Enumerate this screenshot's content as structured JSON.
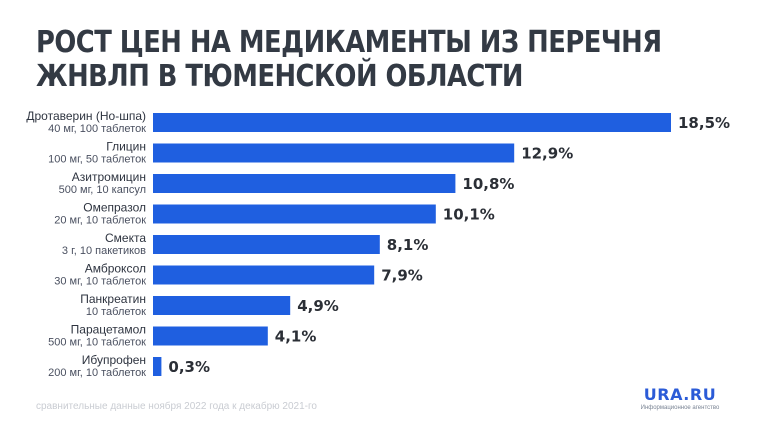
{
  "title_line1": "РОСТ ЦЕН НА МЕДИКАМЕНТЫ ИЗ ПЕРЕЧНЯ",
  "title_line2": "ЖНВЛП В ТЮМЕНСКОЙ ОБЛАСТИ",
  "footnote": "сравнительные данные ноября 2022 года к декабрю 2021-го",
  "brand": {
    "name": "URA.RU",
    "tagline": "Информационное агентство"
  },
  "colors": {
    "bar": "#1f5fe0",
    "title": "#333a44"
  },
  "chart_data": {
    "type": "bar",
    "orientation": "horizontal",
    "categories": [
      {
        "name": "Дротаверин (Но-шпа)",
        "sub": "40 мг, 100 таблеток",
        "value": 18.5,
        "label": "18,5%"
      },
      {
        "name": "Глицин",
        "sub": "100 мг, 50 таблеток",
        "value": 12.9,
        "label": "12,9%"
      },
      {
        "name": "Азитромицин",
        "sub": "500 мг, 10 капсул",
        "value": 10.8,
        "label": "10,8%"
      },
      {
        "name": "Омепразол",
        "sub": "20 мг, 10 таблеток",
        "value": 10.1,
        "label": "10,1%"
      },
      {
        "name": "Смекта",
        "sub": "3 г, 10 пакетиков",
        "value": 8.1,
        "label": "8,1%"
      },
      {
        "name": "Амброксол",
        "sub": "30 мг, 10 таблеток",
        "value": 7.9,
        "label": "7,9%"
      },
      {
        "name": "Панкреатин",
        "sub": "10 таблеток",
        "value": 4.9,
        "label": "4,9%"
      },
      {
        "name": "Парацетамол",
        "sub": "500 мг, 10 таблеток",
        "value": 4.1,
        "label": "4,1%"
      },
      {
        "name": "Ибупрофен",
        "sub": "200 мг, 10 таблеток",
        "value": 0.3,
        "label": "0,3%"
      }
    ],
    "xlim": [
      0,
      18.5
    ],
    "grid": false,
    "legend": "none"
  }
}
